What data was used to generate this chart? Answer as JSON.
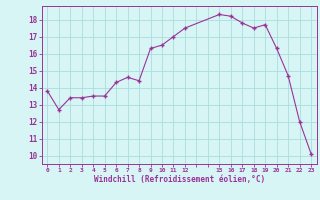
{
  "x_data": [
    0,
    1,
    2,
    3,
    4,
    5,
    6,
    7,
    8,
    9,
    10,
    11,
    12,
    15,
    16,
    17,
    18,
    19,
    20,
    21,
    22,
    23
  ],
  "y_data": [
    13.8,
    12.7,
    13.4,
    13.4,
    13.5,
    13.5,
    14.3,
    14.6,
    14.4,
    16.3,
    16.5,
    17.0,
    17.5,
    18.3,
    18.2,
    17.8,
    17.5,
    17.7,
    16.3,
    14.7,
    12.0,
    10.1
  ],
  "xlabel": "Windchill (Refroidissement éolien,°C)",
  "ytick_positions": [
    10,
    11,
    12,
    13,
    14,
    15,
    16,
    17,
    18
  ],
  "ylim": [
    9.5,
    18.8
  ],
  "xlim": [
    -0.5,
    23.5
  ],
  "line_color": "#993399",
  "bg_color": "#d8f5f5",
  "grid_color": "#aadddd",
  "figsize": [
    3.2,
    2.0
  ],
  "dpi": 100
}
